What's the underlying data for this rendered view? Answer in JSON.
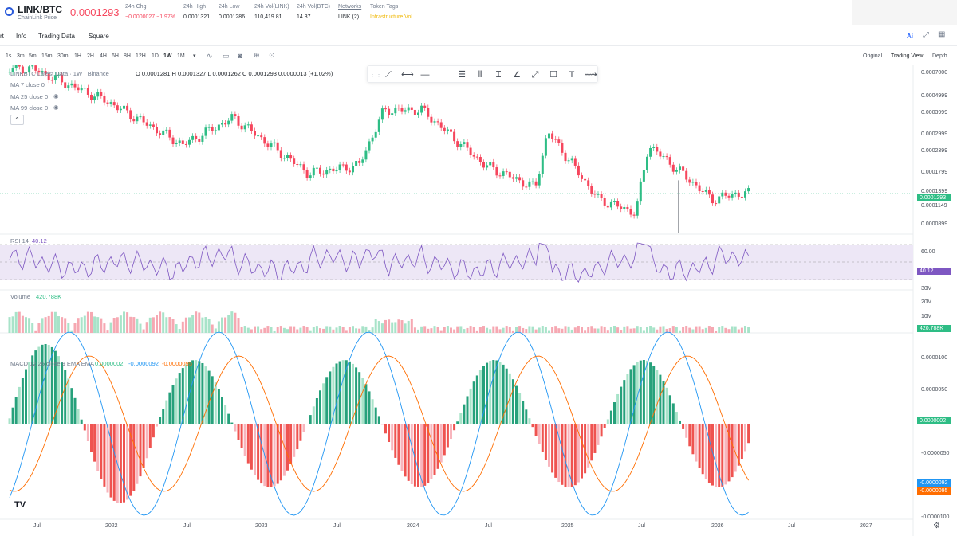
{
  "ticker": {
    "symbol": "LINK/BTC",
    "name": "ChainLink Price",
    "price": "0.0001293",
    "stats": [
      {
        "label": "24h Chg",
        "value": "−0.0000027 −1.97%",
        "color": "#f6465d"
      },
      {
        "label": "24h High",
        "value": "0.0001321"
      },
      {
        "label": "24h Low",
        "value": "0.0001286"
      },
      {
        "label": "24h Vol(LINK)",
        "value": "110,419.81"
      },
      {
        "label": "24h Vol(BTC)",
        "value": "14.37"
      },
      {
        "label": "Networks",
        "value": "LINK (2)"
      },
      {
        "label": "Token Tags",
        "value": "Infrastructure   Vol",
        "color": "#f0b90b"
      }
    ]
  },
  "nav": {
    "tabs": [
      "rt",
      "Info",
      "Trading Data",
      "Square"
    ]
  },
  "toolbar": {
    "timeframes": [
      "1s",
      "3m",
      "5m",
      "15m",
      "30m",
      "1H",
      "2H",
      "4H",
      "6H",
      "8H",
      "12H",
      "1D",
      "1W",
      "1M"
    ],
    "active_timeframe": "1W",
    "views": [
      "Original",
      "Trading View",
      "Depth"
    ],
    "active_view": "Trading View"
  },
  "legend": {
    "main": "LINKBTC Latest Data · 1W · Binance",
    "ohlc": "O 0.0001281  H 0.0001327  L 0.0001262  C 0.0001293  0.0000013 (+1.02%)",
    "ma1": "MA 7 close 0",
    "ma2": "MA 25 close 0",
    "ma3": "MA 99 close 0",
    "rsi": "RSI 14",
    "rsi_value": "40.12",
    "volume": "Volume",
    "volume_value": "420.788K",
    "macd": "MACD 12 26 close 9 EMA EMA",
    "macd_v1": "0.0000002",
    "macd_v2": "-0.0000092",
    "macd_v3": "-0.0000095"
  },
  "price_axis": [
    "0.0007000",
    "0.0004999",
    "0.0003999",
    "0.0002999",
    "0.0002399",
    "0.0001799",
    "0.0001399",
    "0.0001149",
    "0.0000899"
  ],
  "price_tag": "0.0001293",
  "rsi_axis": [
    "60.00"
  ],
  "rsi_tag": "40.12",
  "vol_axis": [
    "30M",
    "20M",
    "10M"
  ],
  "vol_tag": "420.788K",
  "macd_axis": [
    "0.0000100",
    "0.0000050",
    "-0.0000050",
    "-0.0000100"
  ],
  "macd_tags": [
    "0.0000002",
    "-0.0000092",
    "-0.0000095"
  ],
  "x_axis": [
    "Jul",
    "2022",
    "Jul",
    "2023",
    "Jul",
    "2024",
    "Jul",
    "2025",
    "Jul",
    "2026",
    "Jul",
    "2027"
  ],
  "colors": {
    "up": "#2ebd85",
    "down": "#f6465d",
    "rsi": "#7e57c2",
    "macd": "#2196f3",
    "signal": "#ff6d00"
  },
  "chart_data": {
    "type": "line",
    "title": "LINKBTC Latest Data · 1W · Binance",
    "series": [
      {
        "x": [
          "2021-07",
          "2022-01",
          "2022-07",
          "2022-11",
          "2023-05",
          "2023-09",
          "2023-11",
          "2024-02",
          "2024-07",
          "2024-11",
          "2024-12",
          "2025-04",
          "2025-07",
          "2025-08",
          "2025-12",
          "2026-01",
          "2026-03"
        ],
        "values": [
          0.0007,
          0.00045,
          0.00025,
          0.00036,
          0.00017,
          0.00019,
          0.0004,
          0.0004,
          0.00019,
          0.00014,
          0.0003,
          0.00012,
          0.0001,
          0.00025,
          0.00014,
          0.00012,
          0.0001293
        ]
      }
    ],
    "ylim": [
      8e-05,
      0.0007
    ],
    "yscale": "log"
  }
}
